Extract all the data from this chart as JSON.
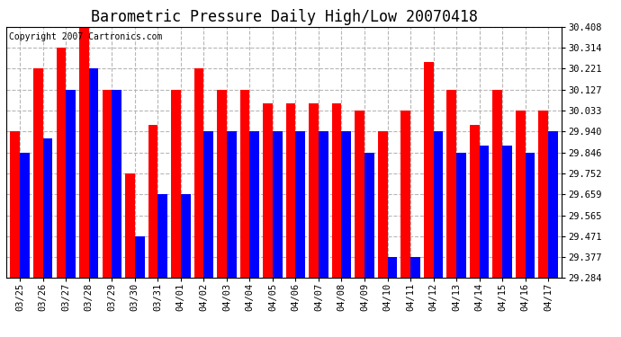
{
  "title": "Barometric Pressure Daily High/Low 20070418",
  "copyright": "Copyright 2007 Cartronics.com",
  "dates": [
    "03/25",
    "03/26",
    "03/27",
    "03/28",
    "03/29",
    "03/30",
    "03/31",
    "04/01",
    "04/02",
    "04/03",
    "04/04",
    "04/05",
    "04/06",
    "04/07",
    "04/08",
    "04/09",
    "04/10",
    "04/11",
    "04/12",
    "04/13",
    "04/14",
    "04/15",
    "04/16",
    "04/17"
  ],
  "highs": [
    29.94,
    30.221,
    30.314,
    30.408,
    30.127,
    29.752,
    29.971,
    30.127,
    30.221,
    30.127,
    30.127,
    30.065,
    30.065,
    30.065,
    30.065,
    30.033,
    29.94,
    30.033,
    30.25,
    30.127,
    29.971,
    30.127,
    30.033,
    30.033
  ],
  "lows": [
    29.846,
    29.909,
    30.127,
    30.221,
    30.127,
    29.471,
    29.659,
    29.659,
    29.94,
    29.94,
    29.94,
    29.94,
    29.94,
    29.94,
    29.94,
    29.846,
    29.377,
    29.377,
    29.94,
    29.846,
    29.877,
    29.877,
    29.846,
    29.94
  ],
  "high_color": "#ff0000",
  "low_color": "#0000ff",
  "bg_color": "#ffffff",
  "plot_bg_color": "#ffffff",
  "grid_color": "#b0b0b0",
  "ymin": 29.284,
  "ymax": 30.408,
  "yticks": [
    29.284,
    29.377,
    29.471,
    29.565,
    29.659,
    29.752,
    29.846,
    29.94,
    30.033,
    30.127,
    30.221,
    30.314,
    30.408
  ],
  "title_fontsize": 12,
  "copyright_fontsize": 7,
  "tick_fontsize": 7.5
}
